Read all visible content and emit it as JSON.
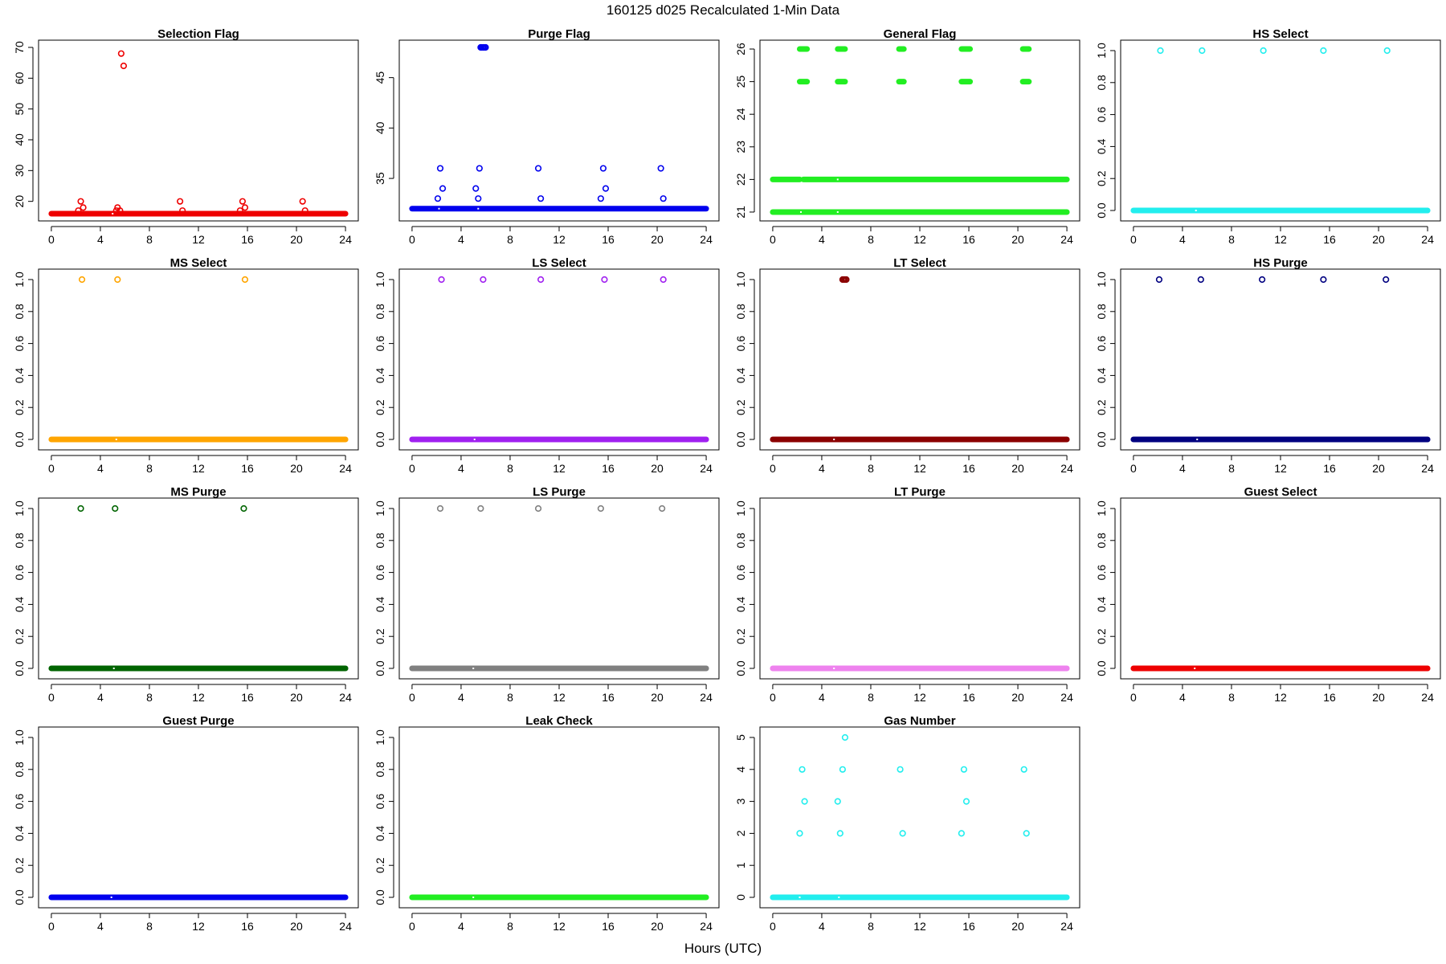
{
  "figure": {
    "title": "160125   d025   Recalculated 1-Min Data",
    "xlabel": "Hours (UTC)"
  },
  "chart_data": [
    {
      "type": "scatter",
      "title": "Selection Flag",
      "color": "#ee0000",
      "xlim": [
        0,
        24
      ],
      "xticks": [
        0,
        4,
        8,
        12,
        16,
        20,
        24
      ],
      "ylim": [
        16,
        70
      ],
      "yticks": [
        20,
        30,
        40,
        50,
        60,
        70
      ],
      "baseline": {
        "y": 16,
        "gaps": [
          5.0
        ]
      },
      "points": [
        [
          2.2,
          17
        ],
        [
          2.4,
          20
        ],
        [
          2.6,
          18
        ],
        [
          5.3,
          17
        ],
        [
          5.4,
          18
        ],
        [
          5.6,
          17
        ],
        [
          5.7,
          68
        ],
        [
          5.9,
          64
        ],
        [
          10.5,
          20
        ],
        [
          10.7,
          17
        ],
        [
          15.4,
          17
        ],
        [
          15.6,
          20
        ],
        [
          15.8,
          18
        ],
        [
          20.5,
          20
        ],
        [
          20.7,
          17
        ]
      ]
    },
    {
      "type": "scatter",
      "title": "Purge Flag",
      "color": "#0000ee",
      "xlim": [
        0,
        24
      ],
      "xticks": [
        0,
        4,
        8,
        12,
        16,
        20,
        24
      ],
      "ylim": [
        31.5,
        48
      ],
      "yticks": [
        35,
        40,
        45
      ],
      "baseline": {
        "y": 32,
        "gaps": [
          2.2,
          5.4
        ]
      },
      "points": [
        [
          2.1,
          33
        ],
        [
          2.3,
          36
        ],
        [
          2.5,
          34
        ],
        [
          5.2,
          34
        ],
        [
          5.4,
          33
        ],
        [
          5.5,
          36
        ],
        [
          5.6,
          48
        ],
        [
          5.7,
          48
        ],
        [
          5.8,
          48
        ],
        [
          5.9,
          48
        ],
        [
          6.0,
          48
        ],
        [
          10.3,
          36
        ],
        [
          10.5,
          33
        ],
        [
          15.4,
          33
        ],
        [
          15.6,
          36
        ],
        [
          15.8,
          34
        ],
        [
          20.3,
          36
        ],
        [
          20.5,
          33
        ]
      ]
    },
    {
      "type": "scatter",
      "title": "General Flag",
      "color": "#22ee22",
      "xlim": [
        0,
        24
      ],
      "xticks": [
        0,
        4,
        8,
        12,
        16,
        20,
        24
      ],
      "ylim": [
        20.95,
        26.05
      ],
      "yticks": [
        21,
        22,
        23,
        24,
        25,
        26
      ],
      "baseline": {
        "y": 21,
        "gaps": [
          2.3,
          5.3
        ]
      },
      "lines": [
        {
          "y": 22,
          "segments": [
            [
              0,
              2.2
            ],
            [
              2.5,
              24
            ]
          ],
          "gaps": [
            5.3
          ]
        },
        {
          "y": 25,
          "segments": [
            [
              2.2,
              2.8
            ],
            [
              5.3,
              5.9
            ],
            [
              10.3,
              10.7
            ],
            [
              15.4,
              16.1
            ],
            [
              20.4,
              20.9
            ]
          ]
        },
        {
          "y": 26,
          "segments": [
            [
              2.2,
              2.8
            ],
            [
              5.3,
              5.9
            ],
            [
              10.3,
              10.7
            ],
            [
              15.4,
              16.1
            ],
            [
              20.4,
              20.9
            ]
          ]
        }
      ],
      "points": []
    },
    {
      "type": "scatter",
      "title": "HS Select",
      "color": "#22eeee",
      "xlim": [
        0,
        24
      ],
      "xticks": [
        0,
        4,
        8,
        12,
        16,
        20,
        24
      ],
      "ylim": [
        -0.02,
        1.02
      ],
      "yticks": [
        0.0,
        0.2,
        0.4,
        0.6,
        0.8,
        1.0
      ],
      "baseline": {
        "y": 0,
        "gaps": [
          5.1
        ]
      },
      "points": [
        [
          2.2,
          1
        ],
        [
          5.6,
          1
        ],
        [
          10.6,
          1
        ],
        [
          15.5,
          1
        ],
        [
          20.7,
          1
        ]
      ]
    },
    {
      "type": "scatter",
      "title": "MS Select",
      "color": "#ffa500",
      "xlim": [
        0,
        24
      ],
      "xticks": [
        0,
        4,
        8,
        12,
        16,
        20,
        24
      ],
      "ylim": [
        -0.02,
        1.02
      ],
      "yticks": [
        0.0,
        0.2,
        0.4,
        0.6,
        0.8,
        1.0
      ],
      "baseline": {
        "y": 0,
        "gaps": [
          5.3
        ]
      },
      "points": [
        [
          2.5,
          1
        ],
        [
          5.4,
          1
        ],
        [
          15.8,
          1
        ]
      ]
    },
    {
      "type": "scatter",
      "title": "LS Select",
      "color": "#a020f0",
      "xlim": [
        0,
        24
      ],
      "xticks": [
        0,
        4,
        8,
        12,
        16,
        20,
        24
      ],
      "ylim": [
        -0.02,
        1.02
      ],
      "yticks": [
        0.0,
        0.2,
        0.4,
        0.6,
        0.8,
        1.0
      ],
      "baseline": {
        "y": 0,
        "gaps": [
          5.1
        ]
      },
      "points": [
        [
          2.4,
          1
        ],
        [
          5.8,
          1
        ],
        [
          10.5,
          1
        ],
        [
          15.7,
          1
        ],
        [
          20.5,
          1
        ]
      ]
    },
    {
      "type": "scatter",
      "title": "LT Select",
      "color": "#8b0000",
      "xlim": [
        0,
        24
      ],
      "xticks": [
        0,
        4,
        8,
        12,
        16,
        20,
        24
      ],
      "ylim": [
        -0.02,
        1.02
      ],
      "yticks": [
        0.0,
        0.2,
        0.4,
        0.6,
        0.8,
        1.0
      ],
      "baseline": {
        "y": 0,
        "gaps": [
          5.0
        ]
      },
      "points": [
        [
          5.7,
          1
        ],
        [
          5.8,
          1
        ],
        [
          5.9,
          1
        ],
        [
          6.0,
          1
        ]
      ]
    },
    {
      "type": "scatter",
      "title": "HS Purge",
      "color": "#000080",
      "xlim": [
        0,
        24
      ],
      "xticks": [
        0,
        4,
        8,
        12,
        16,
        20,
        24
      ],
      "ylim": [
        -0.02,
        1.02
      ],
      "yticks": [
        0.0,
        0.2,
        0.4,
        0.6,
        0.8,
        1.0
      ],
      "baseline": {
        "y": 0,
        "gaps": [
          5.2
        ]
      },
      "points": [
        [
          2.1,
          1
        ],
        [
          5.5,
          1
        ],
        [
          10.5,
          1
        ],
        [
          15.5,
          1
        ],
        [
          20.6,
          1
        ]
      ]
    },
    {
      "type": "scatter",
      "title": "MS Purge",
      "color": "#006400",
      "xlim": [
        0,
        24
      ],
      "xticks": [
        0,
        4,
        8,
        12,
        16,
        20,
        24
      ],
      "ylim": [
        -0.02,
        1.02
      ],
      "yticks": [
        0.0,
        0.2,
        0.4,
        0.6,
        0.8,
        1.0
      ],
      "baseline": {
        "y": 0,
        "gaps": [
          5.1
        ]
      },
      "points": [
        [
          2.4,
          1
        ],
        [
          5.2,
          1
        ],
        [
          15.7,
          1
        ]
      ]
    },
    {
      "type": "scatter",
      "title": "LS Purge",
      "color": "#808080",
      "xlim": [
        0,
        24
      ],
      "xticks": [
        0,
        4,
        8,
        12,
        16,
        20,
        24
      ],
      "ylim": [
        -0.02,
        1.02
      ],
      "yticks": [
        0.0,
        0.2,
        0.4,
        0.6,
        0.8,
        1.0
      ],
      "baseline": {
        "y": 0,
        "gaps": [
          5.0
        ]
      },
      "points": [
        [
          2.3,
          1
        ],
        [
          5.6,
          1
        ],
        [
          10.3,
          1
        ],
        [
          15.4,
          1
        ],
        [
          20.4,
          1
        ]
      ]
    },
    {
      "type": "scatter",
      "title": "LT Purge",
      "color": "#ee82ee",
      "xlim": [
        0,
        24
      ],
      "xticks": [
        0,
        4,
        8,
        12,
        16,
        20,
        24
      ],
      "ylim": [
        -0.02,
        1.02
      ],
      "yticks": [
        0.0,
        0.2,
        0.4,
        0.6,
        0.8,
        1.0
      ],
      "baseline": {
        "y": 0,
        "gaps": [
          5.0
        ]
      },
      "points": []
    },
    {
      "type": "scatter",
      "title": "Guest Select",
      "color": "#ee0000",
      "xlim": [
        0,
        24
      ],
      "xticks": [
        0,
        4,
        8,
        12,
        16,
        20,
        24
      ],
      "ylim": [
        -0.02,
        1.02
      ],
      "yticks": [
        0.0,
        0.2,
        0.4,
        0.6,
        0.8,
        1.0
      ],
      "baseline": {
        "y": 0,
        "gaps": [
          5.0
        ]
      },
      "points": []
    },
    {
      "type": "scatter",
      "title": "Guest Purge",
      "color": "#0000ee",
      "xlim": [
        0,
        24
      ],
      "xticks": [
        0,
        4,
        8,
        12,
        16,
        20,
        24
      ],
      "ylim": [
        -0.02,
        1.02
      ],
      "yticks": [
        0.0,
        0.2,
        0.4,
        0.6,
        0.8,
        1.0
      ],
      "baseline": {
        "y": 0,
        "gaps": [
          4.9
        ]
      },
      "points": []
    },
    {
      "type": "scatter",
      "title": "Leak Check",
      "color": "#22ee22",
      "xlim": [
        0,
        24
      ],
      "xticks": [
        0,
        4,
        8,
        12,
        16,
        20,
        24
      ],
      "ylim": [
        -0.02,
        1.02
      ],
      "yticks": [
        0.0,
        0.2,
        0.4,
        0.6,
        0.8,
        1.0
      ],
      "baseline": {
        "y": 0,
        "gaps": [
          5.0
        ]
      },
      "points": []
    },
    {
      "type": "scatter",
      "title": "Gas Number",
      "color": "#22eeee",
      "xlim": [
        0,
        24
      ],
      "xticks": [
        0,
        4,
        8,
        12,
        16,
        20,
        24
      ],
      "ylim": [
        -0.1,
        5.1
      ],
      "yticks": [
        0,
        1,
        2,
        3,
        4,
        5
      ],
      "baseline": {
        "y": 0,
        "gaps": [
          2.2,
          5.4
        ]
      },
      "points": [
        [
          2.2,
          2
        ],
        [
          2.4,
          4
        ],
        [
          2.6,
          3
        ],
        [
          5.3,
          3
        ],
        [
          5.5,
          2
        ],
        [
          5.7,
          4
        ],
        [
          5.9,
          5
        ],
        [
          10.4,
          4
        ],
        [
          10.6,
          2
        ],
        [
          15.4,
          2
        ],
        [
          15.6,
          4
        ],
        [
          15.8,
          3
        ],
        [
          20.5,
          4
        ],
        [
          20.7,
          2
        ]
      ]
    }
  ]
}
